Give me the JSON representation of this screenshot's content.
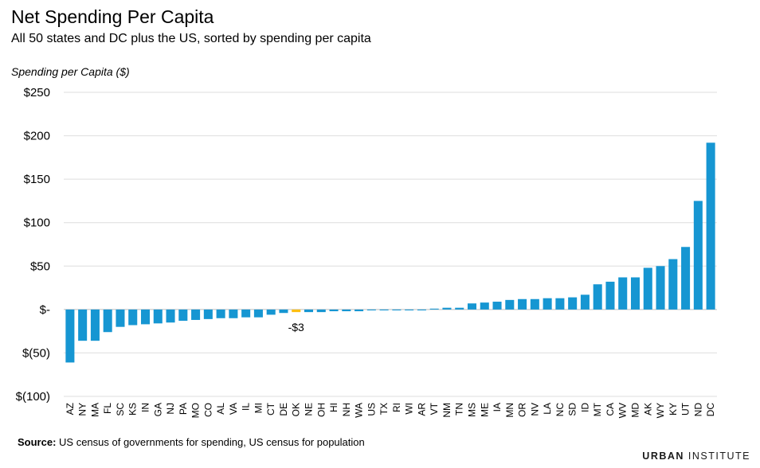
{
  "chart_data": {
    "type": "bar",
    "title": "Net Spending Per Capita",
    "subtitle": "All 50 states and DC plus the US, sorted by spending per capita",
    "ylabel": "Spending per Capita ($)",
    "xlabel": "",
    "ylim": [
      -100,
      250
    ],
    "yticks": [
      -100,
      -50,
      0,
      50,
      100,
      150,
      200,
      250
    ],
    "ytick_labels": [
      "$(100)",
      "$(50)",
      "$-",
      "$50",
      "$100",
      "$150",
      "$200",
      "$250"
    ],
    "grid": true,
    "categories": [
      "AZ",
      "NY",
      "MA",
      "FL",
      "SC",
      "KS",
      "IN",
      "GA",
      "NJ",
      "PA",
      "MO",
      "CO",
      "AL",
      "VA",
      "IL",
      "MI",
      "CT",
      "DE",
      "OK",
      "NE",
      "OH",
      "HI",
      "NH",
      "WA",
      "US",
      "TX",
      "RI",
      "WI",
      "AR",
      "VT",
      "NM",
      "TN",
      "MS",
      "ME",
      "IA",
      "MN",
      "OR",
      "NV",
      "LA",
      "NC",
      "SD",
      "ID",
      "MT",
      "CA",
      "WV",
      "MD",
      "AK",
      "WY",
      "KY",
      "UT",
      "ND",
      "DC"
    ],
    "values": [
      -61,
      -36,
      -36,
      -26,
      -20,
      -18,
      -17,
      -16,
      -15,
      -13,
      -12,
      -11,
      -10,
      -10,
      -9,
      -9,
      -6,
      -4,
      -3,
      -3,
      -3,
      -2,
      -2,
      -2,
      -1,
      -1,
      -1,
      -1,
      -1,
      1,
      2,
      2,
      7,
      8,
      9,
      11,
      12,
      12,
      13,
      13,
      14,
      17,
      29,
      32,
      37,
      37,
      48,
      50,
      58,
      72,
      125,
      192
    ],
    "highlight": {
      "category": "OK",
      "label": "-$3"
    },
    "colors": {
      "bar": "#1696d2",
      "highlight": "#fdbf11",
      "grid": "#dedede",
      "zero": "#bfbfbf"
    }
  },
  "footer": {
    "source_label": "Source:",
    "source_text": " US census of governments for spending, US census for population",
    "brand_bold": "URBAN",
    "brand_rest": " INSTITUTE"
  }
}
